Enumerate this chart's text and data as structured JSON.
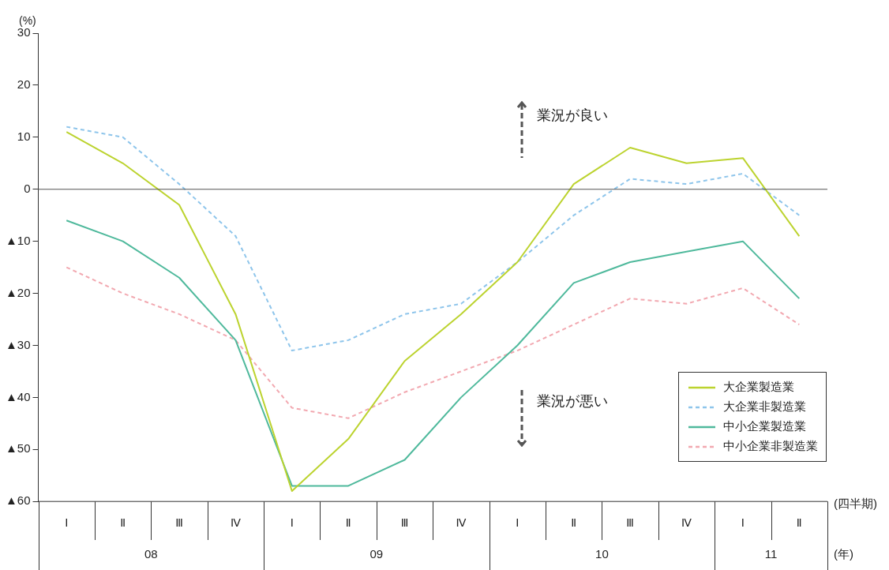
{
  "chart_data": {
    "type": "line",
    "ylabel": "(%)",
    "categories": [
      "Ⅰ",
      "Ⅱ",
      "Ⅲ",
      "Ⅳ",
      "Ⅰ",
      "Ⅱ",
      "Ⅲ",
      "Ⅳ",
      "Ⅰ",
      "Ⅱ",
      "Ⅲ",
      "Ⅳ",
      "Ⅰ",
      "Ⅱ"
    ],
    "series": [
      {
        "name": "大企業製造業",
        "color": "#bcd32f",
        "line_style": "solid",
        "values": [
          11,
          5,
          -3,
          -24,
          -58,
          -48,
          -33,
          -24,
          -14,
          1,
          8,
          5,
          6,
          -9
        ]
      },
      {
        "name": "大企業非製造業",
        "color": "#8ec5eb",
        "line_style": "dashed",
        "values": [
          12,
          10,
          1,
          -9,
          -31,
          -29,
          -24,
          -22,
          -14,
          -5,
          2,
          1,
          3,
          -5
        ]
      },
      {
        "name": "中小企業製造業",
        "color": "#4fb99c",
        "line_style": "solid",
        "values": [
          -6,
          -10,
          -17,
          -29,
          -57,
          -57,
          -52,
          -40,
          -30,
          -18,
          -14,
          -12,
          -10,
          -21
        ]
      },
      {
        "name": "中小企業非製造業",
        "color": "#f2a8b0",
        "line_style": "dashed",
        "values": [
          -15,
          -20,
          -24,
          -29,
          -42,
          -44,
          -39,
          -35,
          -31,
          -26,
          -21,
          -22,
          -19,
          -26
        ]
      }
    ],
    "ylim": [
      -60,
      30
    ],
    "yticks": [
      30,
      20,
      10,
      0,
      {
        "value": -10,
        "label": "▲10"
      },
      {
        "value": -20,
        "label": "▲20"
      },
      {
        "value": -30,
        "label": "▲30"
      },
      {
        "value": -40,
        "label": "▲40"
      },
      {
        "value": -50,
        "label": "▲50"
      },
      {
        "value": -60,
        "label": "▲60"
      }
    ],
    "ref_lines": [
      {
        "axis": "y",
        "value": 0,
        "color": "#555555"
      }
    ],
    "grid": false,
    "legend": "bottom right",
    "marker": "none",
    "annotations": [
      "業況が良い",
      "業況が悪い",
      "(四半期)",
      "(年)",
      "08",
      "09",
      "10",
      "11"
    ]
  }
}
